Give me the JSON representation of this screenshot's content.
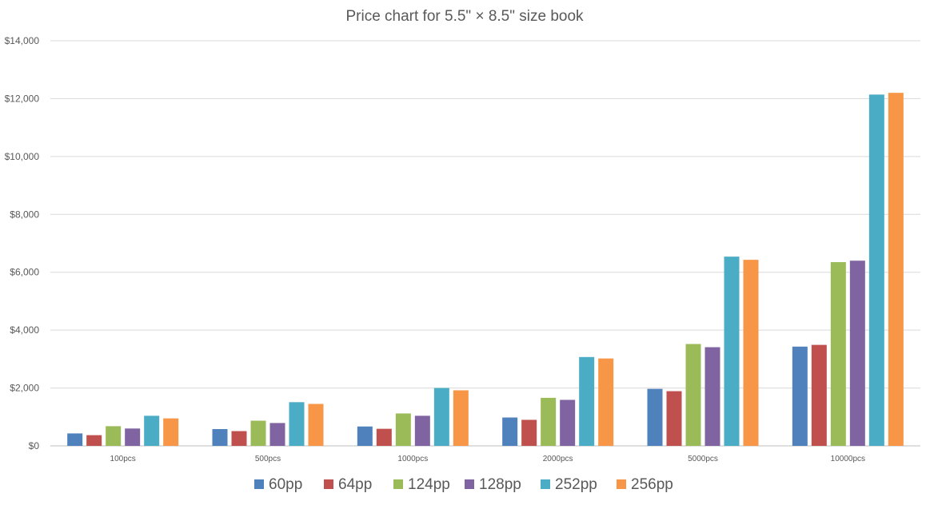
{
  "chart_data": {
    "type": "bar",
    "title": "Price chart for 5.5\" × 8.5\" size book",
    "xlabel": "",
    "ylabel": "",
    "ylim": [
      0,
      14000
    ],
    "yticks": [
      0,
      2000,
      4000,
      6000,
      8000,
      10000,
      12000,
      14000
    ],
    "ytick_labels": [
      "$0",
      "$2,000",
      "$4,000",
      "$6,000",
      "$8,000",
      "$10,000",
      "$12,000",
      "$14,000"
    ],
    "grid": true,
    "legend_position": "bottom",
    "categories": [
      "100pcs",
      "500pcs",
      "1000pcs",
      "2000pcs",
      "5000pcs",
      "10000pcs"
    ],
    "series": [
      {
        "name": "60pp",
        "color": "#4F81BD",
        "values": [
          430,
          580,
          670,
          980,
          1970,
          3430
        ]
      },
      {
        "name": "64pp",
        "color": "#C0504D",
        "values": [
          370,
          510,
          590,
          900,
          1890,
          3490
        ]
      },
      {
        "name": "124pp",
        "color": "#9BBB59",
        "values": [
          680,
          870,
          1120,
          1660,
          3520,
          6350
        ]
      },
      {
        "name": "128pp",
        "color": "#8064A2",
        "values": [
          600,
          790,
          1040,
          1590,
          3410,
          6400
        ]
      },
      {
        "name": "252pp",
        "color": "#4BACC6",
        "values": [
          1040,
          1510,
          2000,
          3070,
          6540,
          12140
        ]
      },
      {
        "name": "256pp",
        "color": "#F79646",
        "values": [
          950,
          1450,
          1920,
          3020,
          6430,
          12200
        ]
      }
    ]
  }
}
